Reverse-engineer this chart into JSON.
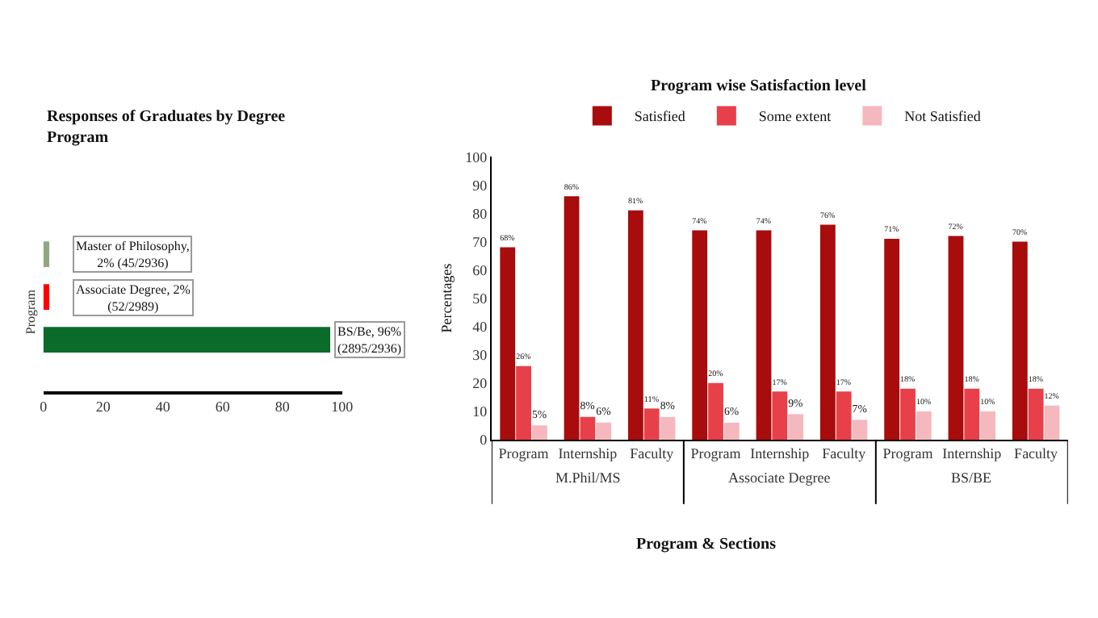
{
  "chart_data": [
    {
      "type": "bar",
      "orientation": "horizontal",
      "title": "Responses of Graduates by Degree Program",
      "ylabel": "Program",
      "categories": [
        null,
        null,
        null
      ],
      "values": [
        2,
        2,
        96
      ],
      "colors": [
        "#8fa882",
        "#ff0000",
        "#0b6b2b"
      ],
      "value_labels": [
        "Master of Philosophy, 2% (45/2936)",
        "Associate Degree, 2% (52/2989)",
        "BS/Be, 96% (2895/2936)"
      ],
      "xlim": [
        0,
        100
      ],
      "xticks": [
        0,
        20,
        40,
        60,
        80,
        100
      ],
      "tick_labels": "x"
    },
    {
      "type": "bar",
      "title": "Program wise Satisfaction level",
      "xlabel": "Program & Sections",
      "ylabel": "Percentages",
      "categories": [
        "Program",
        "Internship",
        "Faculty",
        "Program",
        "Internship",
        "Faculty",
        "Program",
        "Internship",
        "Faculty"
      ],
      "series": [
        {
          "name": "Satisfied",
          "color": "#a80c0c",
          "values": [
            68,
            86,
            81,
            74,
            74,
            76,
            71,
            72,
            70
          ],
          "value_labels": [
            "68%",
            "86%",
            "81%",
            "74%",
            "74%",
            "76%",
            "71%",
            "72%",
            "70%"
          ]
        },
        {
          "name": "Some extent",
          "color": "#e8404a",
          "values": [
            26,
            8,
            11,
            20,
            17,
            17,
            18,
            18,
            18
          ],
          "value_labels": [
            "26%",
            "8%",
            "11%",
            "20%",
            "17%",
            "17%",
            "18%",
            "18%",
            "18%"
          ]
        },
        {
          "name": "Not Satisfied",
          "color": "#f5b8be",
          "values": [
            5,
            6,
            8,
            6,
            9,
            7,
            10,
            10,
            12
          ],
          "value_labels": [
            "5%",
            "6%",
            "8%",
            "6%",
            "9%",
            "7%",
            "10%",
            "10%",
            "12%"
          ]
        }
      ],
      "ylim": [
        0,
        100
      ],
      "yticks": [
        0,
        10,
        20,
        30,
        40,
        50,
        60,
        70,
        80,
        90,
        100
      ],
      "legend": "top",
      "annotations": [
        "M.Phil/MS",
        "Associate Degree",
        "BS/BE"
      ]
    }
  ]
}
